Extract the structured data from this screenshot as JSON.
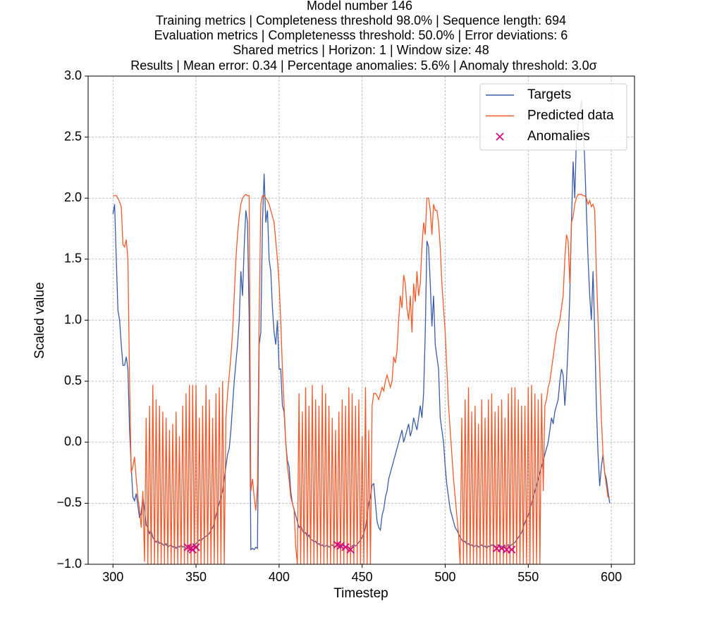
{
  "chart_data": {
    "type": "line",
    "title": "Model number 146",
    "subtitle": [
      "Training metrics | Completeness threshold 98.0% | Sequence length: 694",
      "Evaluation metrics | Completenesss threshold: 50.0% | Error deviations: 6",
      "Shared metrics | Horizon: 1 | Window size: 48",
      "Results | Mean error: 0.34 | Percentage anomalies: 5.6% | Anomaly threshold: 3.0σ"
    ],
    "xlabel": "Timestep",
    "ylabel": "Scaled value",
    "xlim": [
      285.05,
      613.95
    ],
    "ylim": [
      -1,
      3
    ],
    "xticks": [
      300,
      350,
      400,
      450,
      500,
      550,
      600
    ],
    "yticks": [
      {
        "value": -1,
        "label": "−1.0"
      },
      {
        "value": -0.5,
        "label": "−0.5"
      },
      {
        "value": 0,
        "label": "0.0"
      },
      {
        "value": 0.5,
        "label": "0.5"
      },
      {
        "value": 1,
        "label": "1.0"
      },
      {
        "value": 1.5,
        "label": "1.5"
      },
      {
        "value": 2,
        "label": "2.0"
      },
      {
        "value": 2.5,
        "label": "2.5"
      },
      {
        "value": 3,
        "label": "3.0"
      }
    ],
    "grid": true,
    "legend": "upper right",
    "x": [
      300,
      301,
      302,
      303,
      304,
      305,
      306,
      307,
      308,
      309,
      310,
      311,
      312,
      313,
      314,
      315,
      316,
      317,
      318,
      319,
      320,
      321,
      322,
      323,
      324,
      325,
      326,
      327,
      328,
      329,
      330,
      331,
      332,
      333,
      334,
      335,
      336,
      337,
      338,
      339,
      340,
      341,
      342,
      343,
      344,
      345,
      346,
      347,
      348,
      349,
      350,
      351,
      352,
      353,
      354,
      355,
      356,
      357,
      358,
      359,
      360,
      361,
      362,
      363,
      364,
      365,
      366,
      367,
      368,
      369,
      370,
      371,
      372,
      373,
      374,
      375,
      376,
      377,
      378,
      379,
      380,
      381,
      382,
      383,
      384,
      385,
      386,
      387,
      388,
      389,
      390,
      391,
      392,
      393,
      394,
      395,
      396,
      397,
      398,
      399,
      400,
      401,
      402,
      403,
      404,
      405,
      406,
      407,
      408,
      409,
      410,
      411,
      412,
      413,
      414,
      415,
      416,
      417,
      418,
      419,
      420,
      421,
      422,
      423,
      424,
      425,
      426,
      427,
      428,
      429,
      430,
      431,
      432,
      433,
      434,
      435,
      436,
      437,
      438,
      439,
      440,
      441,
      442,
      443,
      444,
      445,
      446,
      447,
      448,
      449,
      450,
      451,
      452,
      453,
      454,
      455,
      456,
      457,
      458,
      459,
      460,
      461,
      462,
      463,
      464,
      465,
      466,
      467,
      468,
      469,
      470,
      471,
      472,
      473,
      474,
      475,
      476,
      477,
      478,
      479,
      480,
      481,
      482,
      483,
      484,
      485,
      486,
      487,
      488,
      489,
      490,
      491,
      492,
      493,
      494,
      495,
      496,
      497,
      498,
      499,
      500,
      501,
      502,
      503,
      504,
      505,
      506,
      507,
      508,
      509,
      510,
      511,
      512,
      513,
      514,
      515,
      516,
      517,
      518,
      519,
      520,
      521,
      522,
      523,
      524,
      525,
      526,
      527,
      528,
      529,
      530,
      531,
      532,
      533,
      534,
      535,
      536,
      537,
      538,
      539,
      540,
      541,
      542,
      543,
      544,
      545,
      546,
      547,
      548,
      549,
      550,
      551,
      552,
      553,
      554,
      555,
      556,
      557,
      558,
      559,
      560,
      561,
      562,
      563,
      564,
      565,
      566,
      567,
      568,
      569,
      570,
      571,
      572,
      573,
      574,
      575,
      576,
      577,
      578,
      579,
      580,
      581,
      582,
      583,
      584,
      585,
      586,
      587,
      588,
      589,
      590,
      591,
      592,
      593,
      594,
      595,
      596,
      597,
      598,
      599
    ],
    "series": [
      {
        "name": "Targets",
        "color": "#3b5ba8",
        "values": [
          1.87,
          1.95,
          1.5,
          1.08,
          1.0,
          0.8,
          0.63,
          0.63,
          0.7,
          0.6,
          0.1,
          -0.2,
          -0.45,
          -0.48,
          -0.42,
          -0.52,
          -0.62,
          -0.58,
          -0.45,
          -0.55,
          -0.68,
          -0.7,
          -0.75,
          -0.72,
          -0.78,
          -0.8,
          -0.82,
          -0.8,
          -0.83,
          -0.82,
          -0.84,
          -0.85,
          -0.83,
          -0.86,
          -0.85,
          -0.84,
          -0.86,
          -0.85,
          -0.87,
          -0.85,
          -0.86,
          -0.84,
          -0.86,
          -0.85,
          -0.87,
          -0.86,
          -0.85,
          -0.84,
          -0.86,
          -0.85,
          -0.83,
          -0.82,
          -0.8,
          -0.81,
          -0.79,
          -0.78,
          -0.77,
          -0.76,
          -0.75,
          -0.72,
          -0.7,
          -0.66,
          -0.6,
          -0.55,
          -0.5,
          -0.45,
          -0.4,
          -0.3,
          -0.2,
          -0.1,
          -0.05,
          0.1,
          0.3,
          0.5,
          0.65,
          0.8,
          1.0,
          1.4,
          1.2,
          1.6,
          1.9,
          1.8,
          1.0,
          -0.88,
          -0.87,
          -0.88,
          -0.86,
          -0.87,
          0.8,
          0.9,
          1.8,
          2.2,
          1.8,
          1.9,
          1.5,
          1.4,
          1.1,
          0.9,
          0.8,
          1.0,
          0.6,
          0.6,
          0.3,
          0.25,
          0.0,
          -0.15,
          -0.2,
          -0.4,
          -0.5,
          -0.55,
          -0.6,
          -0.65,
          -0.7,
          -0.68,
          -0.72,
          -0.75,
          -0.74,
          -0.78,
          -0.76,
          -0.8,
          -0.8,
          -0.82,
          -0.81,
          -0.84,
          -0.83,
          -0.85,
          -0.84,
          -0.86,
          -0.85,
          -0.84,
          -0.86,
          -0.85,
          -0.84,
          -0.86,
          -0.85,
          -0.84,
          -0.85,
          -0.86,
          -0.85,
          -0.84,
          -0.86,
          -0.85,
          -0.87,
          -0.86,
          -0.85,
          -0.84,
          -0.85,
          -0.84,
          -0.82,
          -0.8,
          -0.78,
          -0.75,
          -0.7,
          -0.6,
          -0.5,
          -0.45,
          -0.35,
          -0.34,
          -0.5,
          -0.65,
          -0.7,
          -0.72,
          -0.6,
          -0.55,
          -0.45,
          -0.4,
          -0.3,
          -0.25,
          -0.2,
          -0.15,
          -0.1,
          -0.05,
          0.0,
          0.05,
          0.1,
          0.0,
          0.05,
          0.1,
          0.15,
          0.05,
          0.1,
          0.2,
          0.15,
          0.1,
          0.2,
          0.3,
          0.2,
          0.4,
          0.9,
          1.65,
          1.6,
          1.3,
          0.95,
          1.2,
          0.8,
          0.7,
          0.6,
          0.2,
          0.1,
          0.0,
          -0.2,
          -0.35,
          -0.45,
          -0.55,
          -0.6,
          -0.65,
          -0.7,
          -0.72,
          -0.75,
          -0.78,
          -0.8,
          -0.82,
          -0.81,
          -0.84,
          -0.83,
          -0.85,
          -0.84,
          -0.86,
          -0.85,
          -0.84,
          -0.86,
          -0.85,
          -0.84,
          -0.86,
          -0.85,
          -0.87,
          -0.85,
          -0.86,
          -0.84,
          -0.85,
          -0.86,
          -0.85,
          -0.84,
          -0.86,
          -0.85,
          -0.87,
          -0.86,
          -0.85,
          -0.84,
          -0.85,
          -0.84,
          -0.83,
          -0.82,
          -0.8,
          -0.78,
          -0.76,
          -0.74,
          -0.7,
          -0.66,
          -0.62,
          -0.6,
          -0.55,
          -0.5,
          -0.45,
          -0.4,
          -0.35,
          -0.3,
          -0.25,
          -0.2,
          -0.15,
          -0.1,
          -0.05,
          0.0,
          0.1,
          0.2,
          0.15,
          0.25,
          0.3,
          0.35,
          0.5,
          0.6,
          0.55,
          0.3,
          0.5,
          0.8,
          1.2,
          1.8,
          2.3,
          2.0,
          2.5,
          2.6,
          2.7,
          2.8,
          2.6,
          2.3,
          1.9,
          1.5,
          1.2,
          1.0,
          1.4,
          0.9,
          0.3,
          -0.1,
          -0.36,
          -0.2,
          -0.1,
          -0.25,
          -0.3,
          -0.4,
          -0.5
        ]
      },
      {
        "name": "Predicted data",
        "color": "#f4592a",
        "values": [
          2.02,
          2.02,
          2.02,
          2.0,
          1.97,
          1.93,
          1.62,
          1.6,
          1.66,
          1.5,
          0.5,
          -0.25,
          -0.2,
          -0.12,
          -0.3,
          -0.45,
          -0.55,
          -0.7,
          -0.4,
          -0.98,
          0.2,
          -1,
          0.3,
          -1,
          0.47,
          -1,
          0.35,
          -1,
          0.3,
          -1,
          0.25,
          -1,
          0.2,
          -1,
          0.1,
          -1,
          0.15,
          -1,
          0.25,
          -1,
          0.05,
          -1,
          0.3,
          -1,
          0.4,
          -1,
          0.47,
          -1,
          0.47,
          -1,
          0.47,
          -1,
          0.2,
          -1,
          0.3,
          -1,
          0.47,
          -1,
          0.35,
          -1,
          0.2,
          -1,
          0.4,
          -1,
          0.45,
          -1,
          0.5,
          -1,
          0.2,
          0.4,
          0.55,
          0.7,
          0.9,
          1.2,
          1.5,
          1.7,
          1.85,
          1.95,
          2.0,
          2.02,
          2.03,
          2.02,
          2.02,
          -0.4,
          -0.3,
          -0.45,
          -0.56,
          -0.35,
          1.0,
          1.95,
          2.02,
          2.02,
          2.0,
          1.98,
          1.95,
          1.9,
          1.85,
          1.8,
          1.65,
          1.5,
          1.3,
          1.0,
          0.6,
          0.3,
          0.0,
          -0.2,
          -0.3,
          -0.45,
          -0.5,
          -0.55,
          -0.85,
          -1,
          0.4,
          -1,
          0.25,
          -1,
          0.45,
          -1,
          0.3,
          -1,
          0.47,
          -1,
          0.35,
          -1,
          0.3,
          -1,
          0.47,
          -1,
          0.4,
          -1,
          0.3,
          -1,
          0.2,
          -1,
          0.1,
          -1,
          0.25,
          -1,
          0.35,
          -1,
          0.3,
          -1,
          0.45,
          -1,
          0.4,
          -1,
          0.3,
          -1,
          0.35,
          -1,
          0.05,
          -1,
          0.45,
          -1,
          0.1,
          -1,
          0.3,
          0.4,
          0.4,
          0.38,
          0.35,
          0.4,
          0.45,
          0.42,
          0.5,
          0.55,
          0.5,
          0.45,
          0.5,
          0.7,
          0.65,
          0.75,
          1.0,
          1.2,
          1.1,
          1.37,
          1.3,
          1.1,
          1.0,
          1.2,
          0.9,
          1.3,
          1.15,
          1.4,
          1.2,
          1.3,
          1.6,
          1.8,
          1.7,
          2.0,
          2.0,
          1.9,
          1.7,
          1.95,
          1.9,
          1.9,
          1.8,
          1.6,
          1.3,
          1.1,
          0.9,
          0.6,
          0.3,
          0.1,
          -0.1,
          -0.3,
          -0.45,
          -0.6,
          -0.75,
          -1.0,
          0.2,
          -1,
          0.35,
          -1,
          0.45,
          -1,
          0.25,
          -1,
          0.3,
          -1,
          0.15,
          -1,
          0.35,
          -1,
          0.2,
          -1,
          0.35,
          -1,
          0.4,
          -1,
          0.25,
          -1,
          0.3,
          -1,
          0.35,
          -1,
          0.2,
          -1,
          0.4,
          -1,
          0.45,
          -1,
          0.45,
          -1,
          0.35,
          -1,
          0.3,
          -1,
          0.3,
          -1,
          0.45,
          -1,
          0.47,
          -1,
          0.4,
          -1,
          0.35,
          -1,
          0.4,
          -0.4,
          0.3,
          0.35,
          0.45,
          0.5,
          0.6,
          0.7,
          0.8,
          0.9,
          0.95,
          1.0,
          1.1,
          1.2,
          1.5,
          1.7,
          1.65,
          1.3,
          1.8,
          1.85,
          1.95,
          2.0,
          2.03,
          2.03,
          2.03,
          2.02,
          2.02,
          2.0,
          1.95,
          1.98,
          1.93,
          1.95,
          1.9,
          1.4,
          1.0,
          0.6,
          0.2,
          -0.1,
          -0.25,
          -0.35,
          -0.45,
          -0.45
        ]
      },
      {
        "name": "Anomalies",
        "type": "scatter",
        "marker": "x",
        "color": "#d10a7e",
        "x": [
          345,
          347,
          348,
          350,
          435,
          437,
          440,
          443,
          531,
          534,
          537,
          540
        ],
        "values": [
          -0.86,
          -0.87,
          -0.88,
          -0.86,
          -0.84,
          -0.85,
          -0.86,
          -0.88,
          -0.87,
          -0.87,
          -0.88,
          -0.88
        ]
      }
    ]
  }
}
